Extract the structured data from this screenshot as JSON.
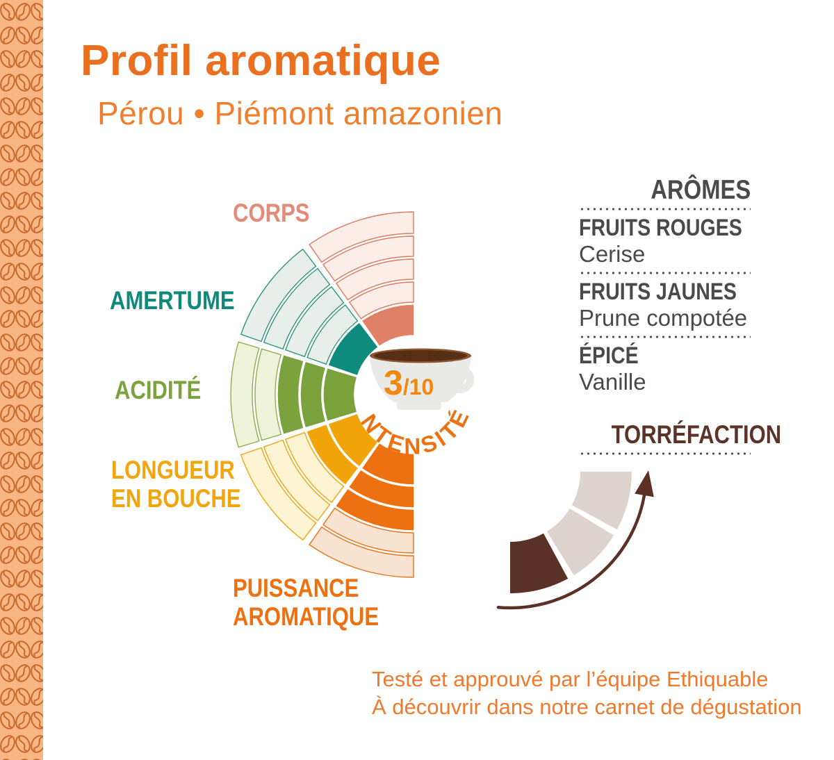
{
  "page": {
    "title": "Profil aromatique",
    "subtitle": "Pérou • Piémont amazonien"
  },
  "intensity": {
    "value": "3",
    "suffix": "/10",
    "label": "INTENSITÉ"
  },
  "chart_data": [
    {
      "type": "radial_fan",
      "title": "INTENSITÉ",
      "max_rings": 5,
      "categories": [
        "CORPS",
        "AMERTUME",
        "ACIDITÉ",
        "LONGUEUR EN BOUCHE",
        "PUISSANCE AROMATIQUE"
      ],
      "values": [
        1,
        1,
        3,
        2,
        3
      ],
      "category_lines": [
        [
          "CORPS"
        ],
        [
          "AMERTUME"
        ],
        [
          "ACIDITÉ"
        ],
        [
          "LONGUEUR",
          "EN BOUCHE"
        ],
        [
          "PUISSANCE",
          "AROMATIQUE"
        ]
      ],
      "center_value": "3",
      "center_max": "10",
      "colors": {
        "fill": [
          "#df8166",
          "#0e8b7d",
          "#7aa23d",
          "#f2a50b",
          "#ed7110"
        ],
        "light": [
          "#fbeee8",
          "#e8eee9",
          "#eff3da",
          "#fcf4d3",
          "#f9e4d1"
        ],
        "border": [
          "#dc7a5e",
          "#2f9581",
          "#8fae52",
          "#f1a50d",
          "#ec7113"
        ],
        "label": [
          "#e28b76",
          "#10897b",
          "#7aa23d",
          "#f2a50c",
          "#ed7110"
        ]
      }
    },
    {
      "type": "gauge",
      "title": "TORRÉFACTION",
      "segments": 3,
      "value": 1,
      "filled_color": "#5a3126",
      "empty_color": "#ddd4cf",
      "arrow_color": "#5b3126"
    }
  ],
  "aromas": {
    "heading": "ARÔMES",
    "items": [
      {
        "family": "FRUITS ROUGES",
        "note": "Cerise"
      },
      {
        "family": "FRUITS JAUNES",
        "note": "Prune compotée"
      },
      {
        "family": "ÉPICÉ",
        "note": "Vanille"
      }
    ]
  },
  "footer": {
    "line1": "Testé et approuvé par l’équipe Ethiquable",
    "line2": "À découvrir dans notre carnet de dégustation"
  },
  "colors": {
    "accent_orange": "#ea6f1f",
    "text_grey": "#4a4a4a",
    "brown": "#5b3327",
    "strip_bg": "#f8b685",
    "strip_bean": "#c8692b",
    "cup_body": "#e9e9e6",
    "coffee": "#572f14"
  }
}
